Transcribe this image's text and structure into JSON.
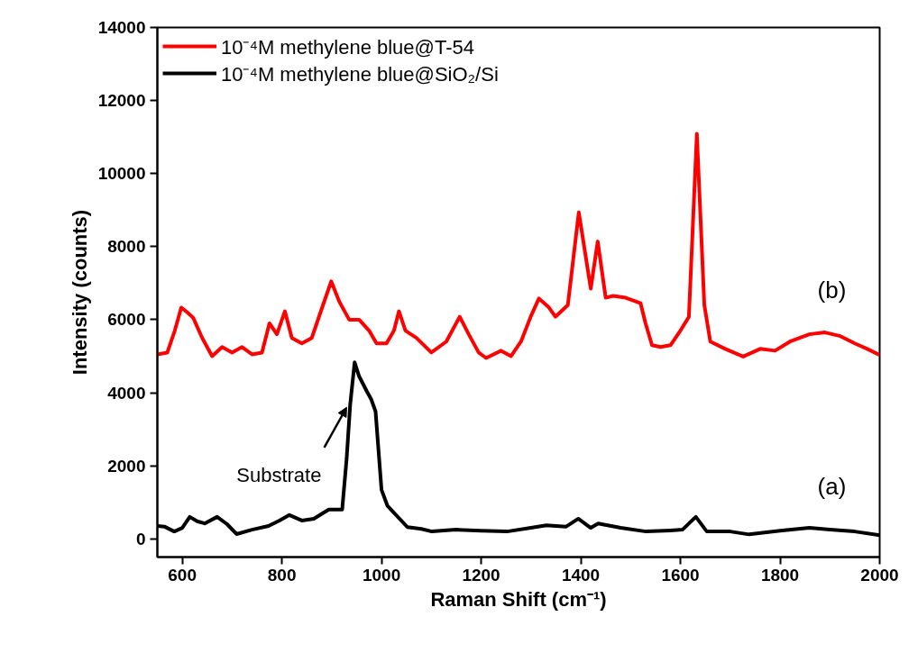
{
  "chart_data": {
    "type": "line",
    "xlabel": "Raman Shift (cm⁻¹)",
    "ylabel": "Intensity (counts)",
    "xlim": [
      550,
      2000
    ],
    "xticks": [
      600,
      800,
      1000,
      1200,
      1400,
      1600,
      1800,
      2000
    ],
    "ylim": [
      -500,
      14000
    ],
    "yticks": [
      0,
      2000,
      4000,
      6000,
      8000,
      10000,
      12000,
      14000
    ],
    "grid": false,
    "legend": "top left",
    "marker": "none",
    "line_style": "solid",
    "series": [
      {
        "name": "10⁻⁴M methylene blue@T-54",
        "color": "#ff0000",
        "x": [
          550,
          570,
          585,
          598,
          610,
          622,
          640,
          660,
          680,
          700,
          720,
          740,
          760,
          775,
          790,
          806,
          820,
          840,
          860,
          880,
          899,
          915,
          935,
          955,
          975,
          990,
          1010,
          1025,
          1035,
          1048,
          1070,
          1100,
          1130,
          1157,
          1175,
          1195,
          1210,
          1240,
          1260,
          1280,
          1300,
          1316,
          1335,
          1349,
          1374,
          1396,
          1420,
          1434,
          1450,
          1465,
          1490,
          1520,
          1530,
          1543,
          1560,
          1580,
          1600,
          1617,
          1633,
          1648,
          1660,
          1690,
          1726,
          1760,
          1790,
          1820,
          1859,
          1890,
          1921,
          1950,
          1975,
          2000
        ],
        "values": [
          5050,
          5100,
          5700,
          6330,
          6200,
          6050,
          5500,
          5000,
          5250,
          5100,
          5250,
          5050,
          5100,
          5900,
          5600,
          6230,
          5500,
          5350,
          5500,
          6300,
          7050,
          6500,
          6000,
          6000,
          5700,
          5350,
          5350,
          5700,
          6230,
          5700,
          5500,
          5100,
          5400,
          6080,
          5600,
          5100,
          4950,
          5150,
          5000,
          5400,
          6100,
          6580,
          6350,
          6080,
          6400,
          8940,
          6850,
          8140,
          6600,
          6650,
          6600,
          6450,
          5900,
          5300,
          5250,
          5300,
          5700,
          6080,
          11090,
          6400,
          5400,
          5200,
          4990,
          5200,
          5150,
          5400,
          5600,
          5650,
          5550,
          5350,
          5200,
          5030
        ]
      },
      {
        "name": "10⁻⁴M methylene blue@SiO₂/Si",
        "color": "#000000",
        "x": [
          550,
          565,
          584,
          600,
          615,
          630,
          645,
          670,
          690,
          709,
          740,
          773,
          795,
          815,
          840,
          864,
          894,
          921,
          930,
          937,
          946,
          955,
          970,
          979,
          988,
          1000,
          1012,
          1028,
          1052,
          1080,
          1101,
          1150,
          1200,
          1252,
          1300,
          1331,
          1370,
          1395,
          1420,
          1435,
          1480,
          1531,
          1580,
          1604,
          1631,
          1653,
          1700,
          1738,
          1800,
          1859,
          1900,
          1950,
          2000
        ],
        "values": [
          350,
          330,
          200,
          300,
          600,
          480,
          420,
          600,
          400,
          130,
          250,
          350,
          500,
          650,
          500,
          550,
          800,
          800,
          2200,
          3660,
          4830,
          4450,
          4050,
          3830,
          3490,
          1340,
          900,
          670,
          320,
          270,
          200,
          250,
          220,
          200,
          300,
          370,
          330,
          550,
          300,
          420,
          300,
          200,
          230,
          250,
          600,
          200,
          200,
          120,
          220,
          300,
          250,
          200,
          100
        ]
      }
    ],
    "annotations": [
      "(b)",
      "(a)",
      {
        "text": "Substrate",
        "x": 930,
        "y": 3600
      }
    ]
  }
}
